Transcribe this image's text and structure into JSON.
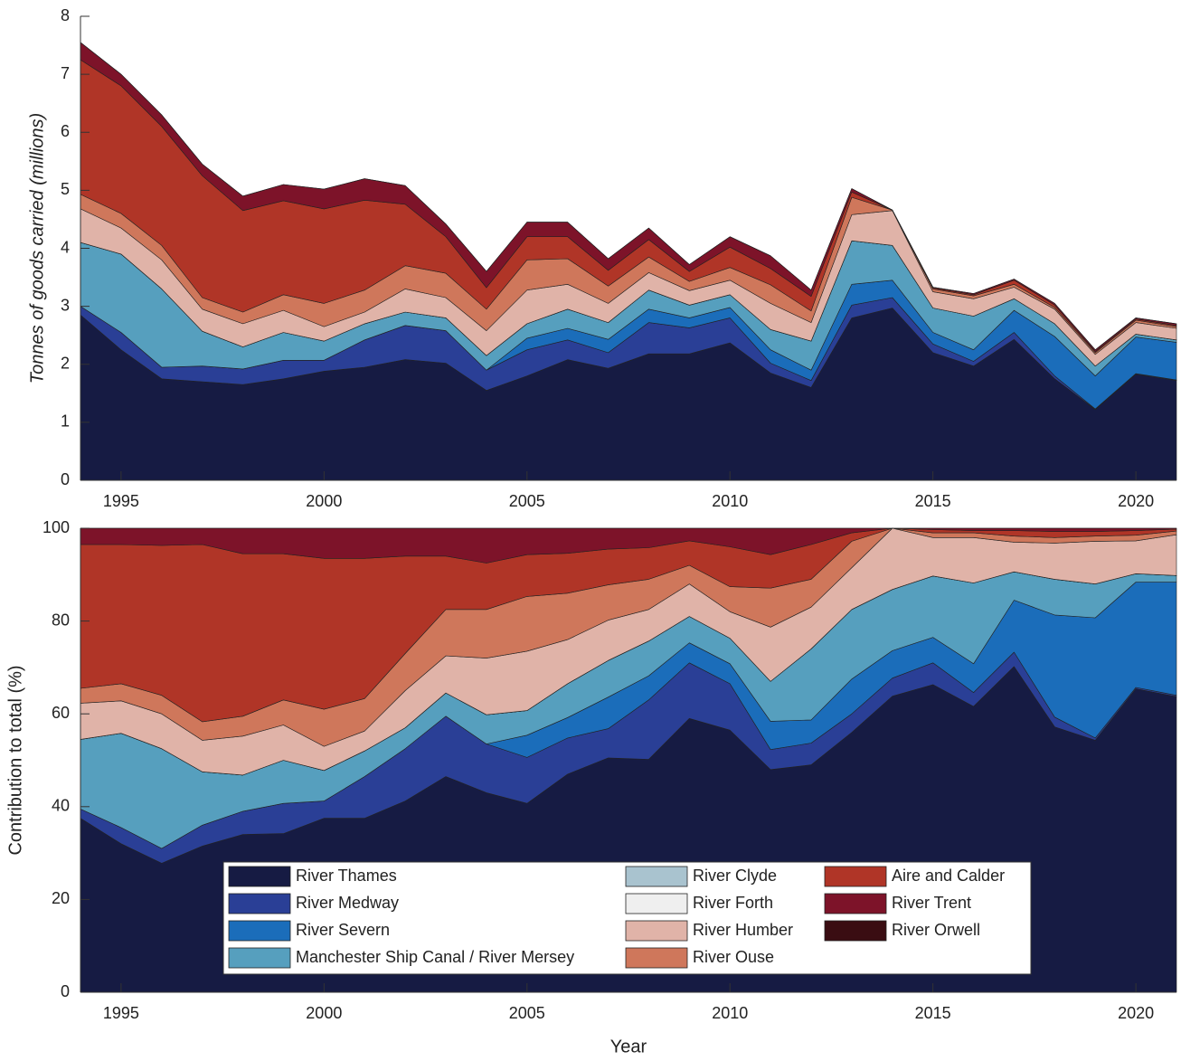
{
  "chart_data": [
    {
      "type": "stacked_area",
      "ylabel": "Tonnes of goods carried (millions)",
      "x": [
        1994,
        1995,
        1996,
        1997,
        1998,
        1999,
        2000,
        2001,
        2002,
        2003,
        2004,
        2005,
        2006,
        2007,
        2008,
        2009,
        2010,
        2011,
        2012,
        2013,
        2014,
        2015,
        2016,
        2017,
        2018,
        2019,
        2020,
        2021
      ],
      "xlim": [
        1994,
        2021
      ],
      "xticks": [
        1995,
        2000,
        2005,
        2010,
        2015,
        2020
      ],
      "ylim": [
        0,
        8
      ],
      "yticks": [
        0,
        1,
        2,
        3,
        4,
        5,
        6,
        7,
        8
      ],
      "series": [
        {
          "color": "#161b43",
          "values": [
            2.85,
            2.25,
            1.75,
            1.7,
            1.65,
            1.75,
            1.88,
            1.95,
            2.08,
            2.02,
            1.55,
            1.8,
            2.08,
            1.93,
            2.18,
            2.18,
            2.37,
            1.85,
            1.6,
            2.8,
            2.97,
            2.2,
            1.97,
            2.43,
            1.75,
            1.22,
            1.83,
            1.72
          ]
        },
        {
          "color": "#2a3f96",
          "values": [
            0.15,
            0.3,
            0.2,
            0.27,
            0.27,
            0.32,
            0.19,
            0.47,
            0.59,
            0.56,
            0.35,
            0.45,
            0.34,
            0.27,
            0.54,
            0.45,
            0.43,
            0.17,
            0.12,
            0.22,
            0.18,
            0.15,
            0.08,
            0.12,
            0.05,
            0.01,
            0.01,
            0.01
          ]
        },
        {
          "color": "#1b6dba",
          "values": [
            0,
            0,
            0,
            0,
            0,
            0,
            0,
            0,
            0,
            0,
            0,
            0.2,
            0.2,
            0.23,
            0.23,
            0.17,
            0.18,
            0.23,
            0.18,
            0.36,
            0.3,
            0.2,
            0.2,
            0.38,
            0.68,
            0.57,
            0.63,
            0.65
          ]
        },
        {
          "color": "#569fbe",
          "values": [
            1.1,
            1.35,
            1.35,
            0.6,
            0.38,
            0.48,
            0.33,
            0.28,
            0.23,
            0.22,
            0.25,
            0.25,
            0.33,
            0.29,
            0.33,
            0.22,
            0.22,
            0.35,
            0.5,
            0.75,
            0.6,
            0.42,
            0.58,
            0.2,
            0.22,
            0.17,
            0.05,
            0.04
          ]
        },
        {
          "color": "#a9c3cf",
          "values": [
            0,
            0,
            0,
            0,
            0,
            0,
            0,
            0,
            0,
            0,
            0,
            0,
            0,
            0,
            0,
            0,
            0,
            0,
            0,
            0,
            0,
            0,
            0,
            0,
            0,
            0,
            0,
            0
          ]
        },
        {
          "color": "#efefef",
          "values": [
            0,
            0,
            0,
            0,
            0,
            0,
            0,
            0,
            0,
            0,
            0,
            0,
            0,
            0,
            0,
            0,
            0,
            0,
            0,
            0,
            0,
            0,
            0,
            0,
            0,
            0,
            0,
            0
          ]
        },
        {
          "color": "#e0b3a8",
          "values": [
            0.58,
            0.45,
            0.5,
            0.38,
            0.4,
            0.38,
            0.25,
            0.2,
            0.4,
            0.35,
            0.43,
            0.58,
            0.43,
            0.33,
            0.3,
            0.25,
            0.25,
            0.45,
            0.32,
            0.45,
            0.6,
            0.28,
            0.3,
            0.2,
            0.25,
            0.2,
            0.2,
            0.2
          ]
        },
        {
          "color": "#cf775b",
          "values": [
            0.25,
            0.25,
            0.25,
            0.2,
            0.2,
            0.27,
            0.4,
            0.38,
            0.4,
            0.42,
            0.37,
            0.52,
            0.44,
            0.3,
            0.27,
            0.16,
            0.22,
            0.32,
            0.2,
            0.3,
            0.01,
            0.05,
            0.05,
            0.05,
            0.03,
            0.03,
            0.04,
            0.03
          ]
        },
        {
          "color": "#b03527",
          "values": [
            2.32,
            2.2,
            2.05,
            2.1,
            1.75,
            1.62,
            1.63,
            1.55,
            1.06,
            0.63,
            0.37,
            0.4,
            0.38,
            0.27,
            0.3,
            0.17,
            0.35,
            0.28,
            0.25,
            0.09,
            0,
            0.02,
            0.02,
            0.07,
            0.04,
            0.02,
            0.02,
            0.02
          ]
        },
        {
          "color": "#7d1329",
          "values": [
            0.3,
            0.2,
            0.2,
            0.2,
            0.25,
            0.28,
            0.34,
            0.37,
            0.32,
            0.22,
            0.28,
            0.25,
            0.25,
            0.2,
            0.2,
            0.12,
            0.18,
            0.22,
            0.11,
            0.06,
            0,
            0.01,
            0.02,
            0.02,
            0.03,
            0.03,
            0.02,
            0.03
          ]
        },
        {
          "color": "#3a0d12",
          "values": [
            0,
            0,
            0,
            0,
            0,
            0,
            0,
            0,
            0,
            0,
            0,
            0,
            0,
            0,
            0,
            0,
            0,
            0,
            0,
            0,
            0,
            0,
            0,
            0,
            0,
            0,
            0,
            0
          ]
        }
      ]
    },
    {
      "type": "stacked_area",
      "xlabel": "Year",
      "ylabel": "Contribution to total (%)",
      "x": [
        1994,
        1995,
        1996,
        1997,
        1998,
        1999,
        2000,
        2001,
        2002,
        2003,
        2004,
        2005,
        2006,
        2007,
        2008,
        2009,
        2010,
        2011,
        2012,
        2013,
        2014,
        2015,
        2016,
        2017,
        2018,
        2019,
        2020,
        2021
      ],
      "xlim": [
        1994,
        2021
      ],
      "xticks": [
        1995,
        2000,
        2005,
        2010,
        2015,
        2020
      ],
      "ylim": [
        0,
        100
      ],
      "yticks": [
        0,
        20,
        40,
        60,
        80,
        100
      ],
      "series": [
        {
          "name": "River Thames",
          "color": "#161b43",
          "values": [
            37.5,
            32,
            27.8,
            31.5,
            34,
            34.2,
            37.5,
            37.5,
            41.2,
            46.5,
            43,
            40.7,
            47,
            50.5,
            50.2,
            59,
            56.5,
            48,
            49,
            56,
            63.8,
            66.3,
            61.6,
            70.2,
            57.2,
            54.3,
            65.4,
            63.7
          ]
        },
        {
          "name": "River Medway",
          "color": "#2a3f96",
          "values": [
            2,
            3.5,
            3.2,
            4.5,
            5,
            6.5,
            3.7,
            9,
            11.3,
            13,
            10.5,
            9.9,
            7.8,
            6.3,
            12.8,
            12,
            10,
            4.3,
            4.7,
            4,
            3.9,
            4.7,
            3,
            3.1,
            2.1,
            0.5,
            0.3,
            0.3
          ]
        },
        {
          "name": "River Severn",
          "color": "#1b6dba",
          "values": [
            0,
            0,
            0,
            0,
            0,
            0,
            0,
            0,
            0,
            0,
            0,
            4.8,
            4.4,
            6.8,
            5.2,
            4.3,
            4.3,
            6.1,
            5,
            7.5,
            5.9,
            5.5,
            6.2,
            11.2,
            22,
            25.9,
            22.7,
            24.4
          ]
        },
        {
          "name": "Manchester Ship Canal / River Mersey",
          "color": "#569fbe",
          "values": [
            15,
            20.3,
            21.5,
            11.5,
            7.8,
            9.3,
            6.6,
            5.5,
            4.5,
            5,
            6.3,
            5.3,
            7.3,
            7.9,
            7.5,
            5.7,
            5.5,
            8.6,
            15.3,
            15,
            13.2,
            13.2,
            17.4,
            6.1,
            7.7,
            7.3,
            1.8,
            1.4
          ]
        },
        {
          "name": "River Clyde",
          "color": "#a9c3cf",
          "values": [
            0,
            0,
            0,
            0,
            0,
            0,
            0,
            0,
            0,
            0,
            0,
            0,
            0,
            0,
            0,
            0,
            0,
            0,
            0,
            0,
            0,
            0,
            0,
            0,
            0,
            0,
            0,
            0
          ]
        },
        {
          "name": "River Forth",
          "color": "#efefef",
          "values": [
            0,
            0,
            0,
            0,
            0,
            0,
            0,
            0,
            0,
            0,
            0,
            0,
            0,
            0,
            0,
            0,
            0,
            0,
            0,
            0,
            0,
            0,
            0,
            0,
            0,
            0,
            0,
            0
          ]
        },
        {
          "name": "River Humber",
          "color": "#e0b3a8",
          "values": [
            7.8,
            7,
            7.5,
            6.8,
            8.4,
            7.6,
            5.2,
            4.3,
            8,
            8,
            12.2,
            12.8,
            9.5,
            8.7,
            6.8,
            7,
            5.7,
            11.7,
            9,
            9,
            13.2,
            8.3,
            9.8,
            6.4,
            7.8,
            9.2,
            7.1,
            8.8
          ]
        },
        {
          "name": "River Ouse",
          "color": "#cf775b",
          "values": [
            3.2,
            3.7,
            4,
            4,
            4.3,
            5.4,
            8,
            7,
            8,
            10,
            10.5,
            11.8,
            10,
            7.6,
            6.5,
            4,
            5.4,
            8.4,
            6,
            5.7,
            0,
            1,
            1,
            1.3,
            1.2,
            1.1,
            1.2,
            0.8
          ]
        },
        {
          "name": "Aire and Calder",
          "color": "#b03527",
          "values": [
            31,
            30,
            32.3,
            38.2,
            35,
            31.5,
            32.5,
            30.2,
            21,
            11.5,
            10,
            9,
            8.6,
            7.7,
            6.8,
            5.3,
            8.6,
            7.2,
            7.5,
            1.8,
            0,
            0.7,
            0.5,
            1.2,
            1.3,
            1,
            1,
            0.4
          ]
        },
        {
          "name": "River Trent",
          "color": "#7d1329",
          "values": [
            3.5,
            3.5,
            3.7,
            3.5,
            5.5,
            5.5,
            6.5,
            6.5,
            6,
            6,
            7.5,
            5.7,
            5.4,
            4.5,
            4.2,
            2.7,
            4,
            5.7,
            3.5,
            1,
            0,
            0.3,
            0.5,
            0.5,
            0.7,
            0.7,
            0.5,
            0.2
          ]
        },
        {
          "name": "River Orwell",
          "color": "#3a0d12",
          "values": [
            0,
            0,
            0,
            0,
            0,
            0,
            0,
            0,
            0,
            0,
            0,
            0,
            0,
            0,
            0,
            0,
            0,
            0,
            0,
            0,
            0,
            0,
            0,
            0,
            0,
            0,
            0,
            0
          ]
        }
      ]
    }
  ]
}
